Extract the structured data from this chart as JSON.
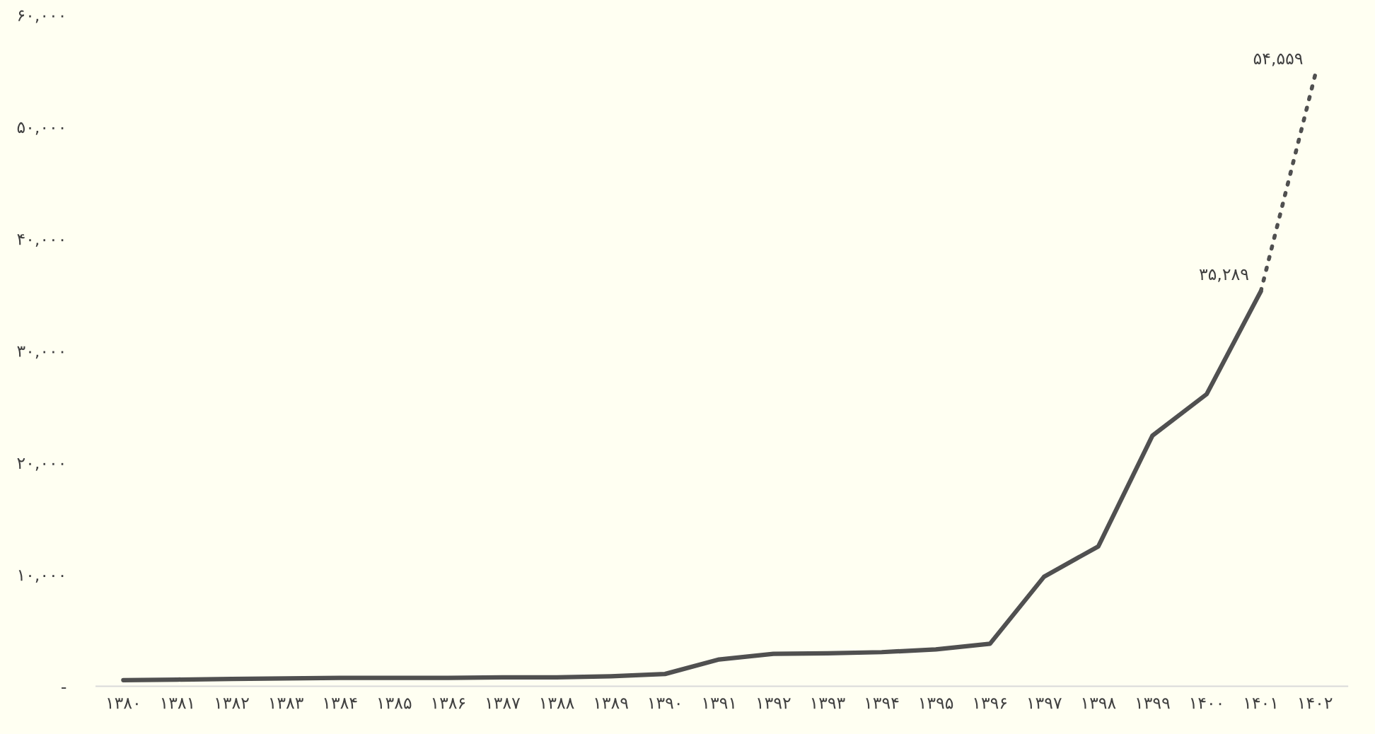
{
  "chart_data": {
    "type": "line",
    "categories": [
      "۱۳۸۰",
      "۱۳۸۱",
      "۱۳۸۲",
      "۱۳۸۳",
      "۱۳۸۴",
      "۱۳۸۵",
      "۱۳۸۶",
      "۱۳۸۷",
      "۱۳۸۸",
      "۱۳۸۹",
      "۱۳۹۰",
      "۱۳۹۱",
      "۱۳۹۲",
      "۱۳۹۳",
      "۱۳۹۴",
      "۱۳۹۵",
      "۱۳۹۶",
      "۱۳۹۷",
      "۱۳۹۸",
      "۱۳۹۹",
      "۱۴۰۰",
      "۱۴۰۱",
      "۱۴۰۲"
    ],
    "series": [
      {
        "color": "#505050",
        "line_style": "solid",
        "values": [
          550,
          600,
          650,
          700,
          750,
          750,
          750,
          800,
          800,
          900,
          1100,
          2400,
          2900,
          2950,
          3050,
          3300,
          3800,
          9800,
          12500,
          22400,
          26100,
          35289,
          null
        ],
        "value_labels": [
          null,
          null,
          null,
          null,
          null,
          null,
          null,
          null,
          null,
          null,
          null,
          null,
          null,
          null,
          null,
          null,
          null,
          null,
          null,
          null,
          null,
          "۳۵,۲۸۹",
          null
        ]
      },
      {
        "color": "#505050",
        "line_style": "dotted",
        "values": [
          null,
          null,
          null,
          null,
          null,
          null,
          null,
          null,
          null,
          null,
          null,
          null,
          null,
          null,
          null,
          null,
          null,
          null,
          null,
          null,
          null,
          35289,
          54559
        ],
        "value_labels": [
          null,
          null,
          null,
          null,
          null,
          null,
          null,
          null,
          null,
          null,
          null,
          null,
          null,
          null,
          null,
          null,
          null,
          null,
          null,
          null,
          null,
          null,
          "۵۴,۵۵۹"
        ]
      }
    ],
    "ylim": [
      0,
      60000
    ],
    "yticks": [
      {
        "value": 0,
        "label": "-"
      },
      {
        "value": 10000,
        "label": "۱۰,۰۰۰"
      },
      {
        "value": 20000,
        "label": "۲۰,۰۰۰"
      },
      {
        "value": 30000,
        "label": "۳۰,۰۰۰"
      },
      {
        "value": 40000,
        "label": "۴۰,۰۰۰"
      },
      {
        "value": 50000,
        "label": "۵۰,۰۰۰"
      },
      {
        "value": 60000,
        "label": "۶۰,۰۰۰"
      }
    ],
    "grid": false,
    "legend": false,
    "marker": "none"
  }
}
